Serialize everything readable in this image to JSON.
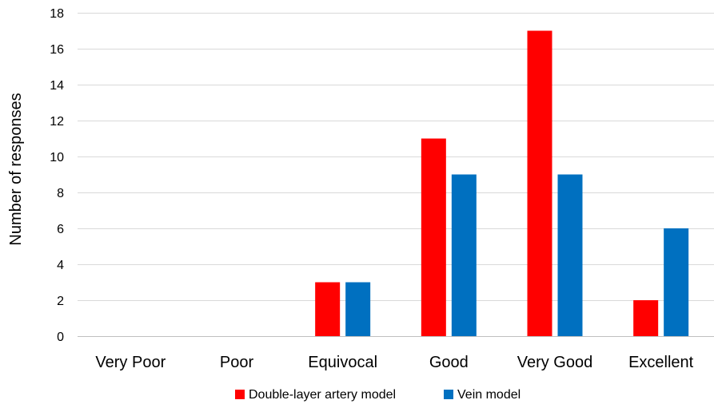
{
  "chart_data": {
    "type": "bar",
    "categories": [
      "Very Poor",
      "Poor",
      "Equivocal",
      "Good",
      "Very Good",
      "Excellent"
    ],
    "series": [
      {
        "name": "Double-layer artery model",
        "values": [
          0,
          0,
          3,
          11,
          17,
          2
        ],
        "color": "#FF0000"
      },
      {
        "name": "Vein model",
        "values": [
          0,
          0,
          3,
          9,
          9,
          6
        ],
        "color": "#0070C0"
      }
    ],
    "title": "",
    "xlabel": "",
    "ylabel": "Number of responses",
    "ylim": [
      0,
      18
    ],
    "yticks": [
      "0",
      "2",
      "4",
      "6",
      "8",
      "10",
      "12",
      "14",
      "16",
      "18"
    ],
    "grid": "horizontal",
    "legend": "bottom-center"
  }
}
